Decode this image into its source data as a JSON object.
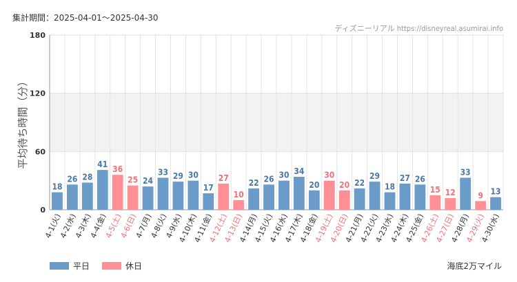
{
  "header": {
    "period_label": "集計期間：2025-04-01～2025-04-30",
    "source_label": "ディズニーリアル https://disneyreal.asumirai.info"
  },
  "footer": {
    "attraction": "海底2万マイル"
  },
  "colors": {
    "weekday": "#6b9bc9",
    "holiday": "#ff8f95",
    "weekday_text": "#4a78a6",
    "holiday_text": "#f07078",
    "axis_text": "#555555",
    "band": "#f2f2f2",
    "grid": "#e4e4e4"
  },
  "chart_data": {
    "type": "bar",
    "title": "",
    "xlabel": "",
    "ylabel": "平均待ち時間（分）",
    "ylim": [
      0,
      180
    ],
    "yticks": [
      0,
      60,
      120,
      180
    ],
    "highlight_band": [
      60,
      120
    ],
    "grid": true,
    "legend_position": "bottom-left",
    "categories": [
      "4-1(火)",
      "4-2(水)",
      "4-3(木)",
      "4-4(金)",
      "4-5(土)",
      "4-6(日)",
      "4-7(月)",
      "4-8(火)",
      "4-9(水)",
      "4-10(木)",
      "4-11(金)",
      "4-12(土)",
      "4-13(日)",
      "4-14(月)",
      "4-15(火)",
      "4-16(水)",
      "4-17(木)",
      "4-18(金)",
      "4-19(土)",
      "4-20(日)",
      "4-21(月)",
      "4-22(火)",
      "4-23(水)",
      "4-24(木)",
      "4-25(金)",
      "4-26(土)",
      "4-27(日)",
      "4-28(月)",
      "4-29(火)",
      "4-30(水)"
    ],
    "values": [
      18,
      26,
      28,
      41,
      36,
      25,
      24,
      33,
      29,
      30,
      17,
      27,
      10,
      22,
      26,
      30,
      34,
      20,
      30,
      20,
      22,
      29,
      18,
      27,
      26,
      15,
      12,
      33,
      9,
      13
    ],
    "holiday": [
      false,
      false,
      false,
      false,
      true,
      true,
      false,
      false,
      false,
      false,
      false,
      true,
      true,
      false,
      false,
      false,
      false,
      false,
      true,
      true,
      false,
      false,
      false,
      false,
      false,
      true,
      true,
      false,
      true,
      false
    ],
    "series": [
      {
        "name": "平日",
        "color": "#6b9bc9"
      },
      {
        "name": "休日",
        "color": "#ff8f95"
      }
    ]
  }
}
